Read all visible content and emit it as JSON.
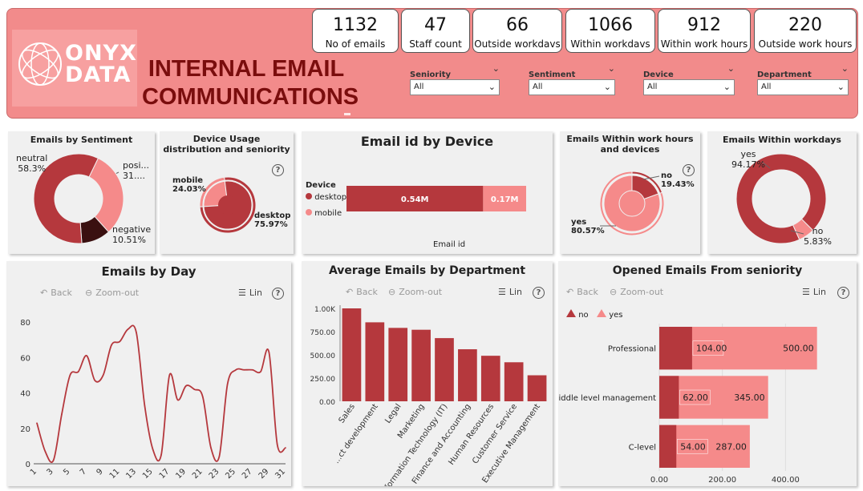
{
  "header": {
    "logo_line1": "ONYX",
    "logo_line2": "DATA",
    "title": "INTERNAL EMAIL COMMUNICATIONS"
  },
  "kpis": [
    {
      "value": "1132",
      "label": "No of emails"
    },
    {
      "value": "47",
      "label": "Staff count"
    },
    {
      "value": "66",
      "label": "Outside workdavs"
    },
    {
      "value": "1066",
      "label": "Within workdavs"
    },
    {
      "value": "912",
      "label": "Within work hours"
    },
    {
      "value": "220",
      "label": "Outside work hours"
    }
  ],
  "slicers": [
    {
      "label": "Seniority",
      "value": "All"
    },
    {
      "label": "Sentiment",
      "value": "All"
    },
    {
      "label": "Device",
      "value": "All"
    },
    {
      "label": "Department",
      "value": "All"
    }
  ],
  "colors": {
    "dark": "#b5383d",
    "light": "#f58a8a",
    "darkest": "#3a1010",
    "header": "#f28b8b"
  },
  "toolbar": {
    "back": "Back",
    "zoom_out": "Zoom-out",
    "lin": "Lin",
    "help": "?"
  },
  "sentiment": {
    "title": "Emails by Sentiment",
    "chart_data": {
      "type": "pie",
      "variant": "donut",
      "slices": [
        {
          "name": "neutral",
          "pct": "58.3%",
          "value": 58.3
        },
        {
          "name": "posi...",
          "pct": "31....",
          "value": 31.19
        },
        {
          "name": "negative",
          "pct": "10.51%",
          "value": 10.51
        }
      ]
    }
  },
  "device_seniority": {
    "title": "Device Usage distribution and seniority",
    "chart_data": {
      "type": "pie",
      "variant": "sunburst",
      "slices": [
        {
          "name": "mobile",
          "pct": "24.03%",
          "value": 24.03
        },
        {
          "name": "desktop",
          "pct": "75.97%",
          "value": 75.97
        }
      ]
    }
  },
  "device_bar": {
    "title": "Email id by Device",
    "legend_title": "Device",
    "xlabel": "Email id",
    "chart_data": {
      "type": "bar",
      "orientation": "horizontal",
      "stacked": true,
      "series": [
        {
          "name": "desktop",
          "value": 0.54,
          "label": "0.54M"
        },
        {
          "name": "mobile",
          "value": 0.17,
          "label": "0.17M"
        }
      ]
    }
  },
  "work_hours": {
    "title": "Emails Within work hours and devices",
    "chart_data": {
      "type": "pie",
      "variant": "sunburst",
      "slices": [
        {
          "name": "no",
          "pct": "19.43%",
          "value": 19.43
        },
        {
          "name": "yes",
          "pct": "80.57%",
          "value": 80.57
        }
      ]
    }
  },
  "workdays": {
    "title": "Emails Within workdays",
    "chart_data": {
      "type": "pie",
      "variant": "donut",
      "slices": [
        {
          "name": "yes",
          "pct": "94.17%",
          "value": 94.17
        },
        {
          "name": "no",
          "pct": "5.83%",
          "value": 5.83
        }
      ]
    }
  },
  "by_day": {
    "title": "Emails by Day",
    "chart_data": {
      "type": "line",
      "x": [
        1,
        2,
        3,
        4,
        5,
        6,
        7,
        8,
        9,
        10,
        11,
        12,
        13,
        14,
        15,
        16,
        17,
        18,
        19,
        20,
        21,
        22,
        23,
        24,
        25,
        26,
        27,
        28,
        29,
        30,
        31
      ],
      "values": [
        23,
        7,
        2,
        28,
        50,
        52,
        61,
        47,
        50,
        67,
        69,
        76,
        74,
        33,
        8,
        5,
        50,
        36,
        44,
        42,
        38,
        9,
        4,
        45,
        53,
        53,
        53,
        52,
        63,
        11,
        9
      ],
      "xticks": [
        "1",
        "3",
        "5",
        "7",
        "9",
        "11",
        "13",
        "15",
        "17",
        "19",
        "21",
        "23",
        "25",
        "27",
        "29",
        "31"
      ],
      "yticks": [
        "0",
        "20",
        "40",
        "60",
        "80"
      ],
      "ylim": [
        0,
        85
      ]
    }
  },
  "by_department": {
    "title": "Average Emails by Department",
    "chart_data": {
      "type": "bar",
      "categories": [
        "Sales",
        "...ct development",
        "Legal",
        "Marketing",
        "Information Technology (IT)",
        "Finance and Accounting",
        "Human Resources",
        "Customer Service",
        "Executive Management"
      ],
      "values": [
        1000,
        850,
        790,
        770,
        680,
        560,
        490,
        420,
        280
      ],
      "yticks": [
        "0.00",
        "250.00",
        "500.00",
        "750.00",
        "1.00K"
      ],
      "ylim": [
        0,
        1000
      ]
    }
  },
  "seniority_opened": {
    "title": "Opened Emails From seniority",
    "chart_data": {
      "type": "bar",
      "orientation": "horizontal",
      "stacked": false,
      "categories": [
        "Professional",
        "Middle level management",
        "C-level"
      ],
      "series": [
        {
          "name": "no",
          "values": [
            104,
            62,
            54
          ],
          "labels": [
            "104.00",
            "62.00",
            "54.00"
          ]
        },
        {
          "name": "yes",
          "values": [
            500,
            345,
            287
          ],
          "labels": [
            "500.00",
            "345.00",
            "287.00"
          ]
        }
      ],
      "xticks": [
        "0.00",
        "200.00",
        "400.00"
      ],
      "xlim": [
        0,
        600
      ]
    }
  }
}
